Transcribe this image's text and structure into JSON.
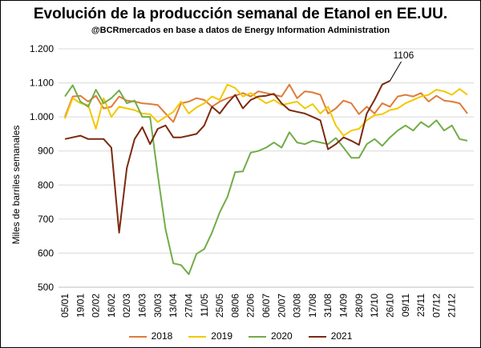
{
  "title": "Evolución de la producción semanal de Etanol en EE.UU.",
  "subtitle": "@BCRmercados en base a datos de Energy Information Administration",
  "chart_data": {
    "type": "line",
    "ylabel": "Miles de barriles semanales",
    "ylim": [
      500,
      1200
    ],
    "yticks": [
      500,
      600,
      700,
      800,
      900,
      1000,
      1100,
      1200
    ],
    "ytick_labels": [
      "500",
      "600",
      "700",
      "800",
      "900",
      "1.000",
      "1.100",
      "1.200"
    ],
    "x_tick_labels": [
      "05/01",
      "19/01",
      "02/02",
      "16/02",
      "02/03",
      "16/03",
      "30/03",
      "13/04",
      "27/04",
      "11/05",
      "25/05",
      "08/06",
      "22/06",
      "06/07",
      "20/07",
      "03/08",
      "17/08",
      "31/08",
      "14/09",
      "28/09",
      "12/10",
      "26/10",
      "09/11",
      "23/11",
      "07/12",
      "21/12"
    ],
    "grid": true,
    "legend": "bottom",
    "annotation": {
      "text": "1106",
      "series": "2021",
      "index": 42
    },
    "series": [
      {
        "name": "2018",
        "color": "#E07B39",
        "values": [
          1000,
          1060,
          1062,
          1045,
          1062,
          1025,
          1030,
          1060,
          1048,
          1045,
          1040,
          1038,
          1035,
          1010,
          985,
          1040,
          1045,
          1055,
          1050,
          1030,
          1045,
          1055,
          1062,
          1070,
          1060,
          1075,
          1070,
          1065,
          1060,
          1095,
          1055,
          1075,
          1072,
          1065,
          1010,
          1025,
          1048,
          1040,
          1008,
          1030,
          1010,
          1040,
          1030,
          1060,
          1065,
          1060,
          1070,
          1045,
          1062,
          1048,
          1045,
          1040,
          1010
        ]
      },
      {
        "name": "2019",
        "color": "#F2C800",
        "values": [
          995,
          1055,
          1040,
          1035,
          965,
          1055,
          1000,
          1030,
          1025,
          1020,
          1010,
          1008,
          985,
          1000,
          1015,
          1045,
          1010,
          1028,
          1040,
          1060,
          1050,
          1095,
          1085,
          1060,
          1070,
          1055,
          1040,
          1050,
          1035,
          1040,
          1045,
          1025,
          1038,
          1010,
          1030,
          975,
          945,
          960,
          965,
          990,
          1005,
          1008,
          1020,
          1025,
          1040,
          1050,
          1060,
          1065,
          1080,
          1075,
          1065,
          1082,
          1065
        ]
      },
      {
        "name": "2020",
        "color": "#70AD47",
        "values": [
          1060,
          1093,
          1045,
          1030,
          1080,
          1040,
          1055,
          1078,
          1040,
          1048,
          1000,
          1000,
          830,
          670,
          570,
          565,
          538,
          598,
          612,
          660,
          720,
          765,
          838,
          840,
          895,
          900,
          910,
          925,
          910,
          955,
          925,
          920,
          930,
          925,
          920,
          938,
          910,
          880,
          880,
          920,
          935,
          915,
          940,
          960,
          975,
          960,
          985,
          970,
          990,
          960,
          975,
          935,
          930
        ]
      },
      {
        "name": "2021",
        "color": "#7B2A0E",
        "values": [
          935,
          940,
          945,
          935,
          935,
          935,
          910,
          660,
          850,
          935,
          970,
          920,
          965,
          975,
          940,
          940,
          945,
          950,
          975,
          1030,
          1010,
          1040,
          1065,
          1025,
          1050,
          1060,
          1062,
          1068,
          1040,
          1020,
          1015,
          1010,
          1000,
          990,
          905,
          920,
          940,
          930,
          918,
          1010,
          1050,
          1095,
          1106
        ]
      }
    ]
  }
}
